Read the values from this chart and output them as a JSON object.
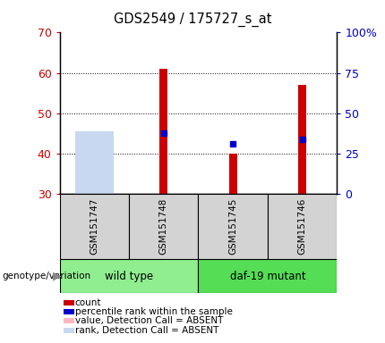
{
  "title": "GDS2549 / 175727_s_at",
  "samples": [
    "GSM151747",
    "GSM151748",
    "GSM151745",
    "GSM151746"
  ],
  "group_labels": [
    "wild type",
    "daf-19 mutant"
  ],
  "group_colors": [
    "#90ee90",
    "#55dd55"
  ],
  "ylim_left": [
    30,
    70
  ],
  "ylim_right": [
    0,
    100
  ],
  "yticks_left": [
    30,
    40,
    50,
    60,
    70
  ],
  "yticks_right": [
    0,
    25,
    50,
    75,
    100
  ],
  "yright_labels": [
    "0",
    "25",
    "50",
    "75",
    "100%"
  ],
  "count_values": [
    null,
    61,
    40,
    57
  ],
  "count_base": 30,
  "percentile_values": [
    null,
    45,
    42.5,
    43.5
  ],
  "value_absent": [
    45,
    null,
    null,
    null
  ],
  "rank_absent": [
    45.5,
    null,
    null,
    null
  ],
  "count_color": "#cc0000",
  "percentile_color": "#0000cc",
  "value_absent_color": "#ffb6c1",
  "rank_absent_color": "#c8d8f0",
  "plot_bg": "#ffffff",
  "label_bg": "#d3d3d3",
  "genotype_label": "genotype/variation",
  "legend_items": [
    {
      "label": "count",
      "color": "#cc0000"
    },
    {
      "label": "percentile rank within the sample",
      "color": "#0000cc"
    },
    {
      "label": "value, Detection Call = ABSENT",
      "color": "#ffb6c1"
    },
    {
      "label": "rank, Detection Call = ABSENT",
      "color": "#c8d8f0"
    }
  ]
}
